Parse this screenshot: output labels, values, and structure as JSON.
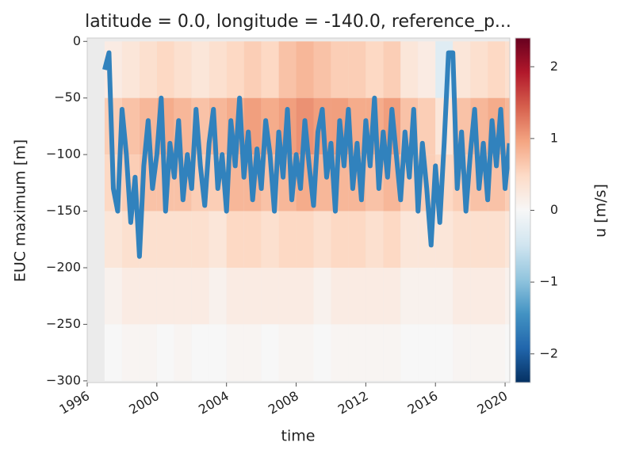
{
  "chart_data": {
    "type": "heatmap",
    "title": "latitude = 0.0, longitude = -140.0, reference_p...",
    "xlabel": "time",
    "ylabel": "EUC maximum [m]",
    "colorbar_label": "u [m/s]",
    "colormap": "RdBu_r",
    "xlim": [
      1996,
      2020.27
    ],
    "ylim": [
      -301.5,
      3
    ],
    "xticks": [
      1996,
      2000,
      2004,
      2008,
      2012,
      2016,
      2020
    ],
    "yticks": [
      {
        "value": -300,
        "label": "−300"
      },
      {
        "value": -250,
        "label": "−250"
      },
      {
        "value": -200,
        "label": "−200"
      },
      {
        "value": -150,
        "label": "−150"
      },
      {
        "value": -100,
        "label": "−100"
      },
      {
        "value": -50,
        "label": "−50"
      },
      0
    ],
    "clim": [
      -2.4,
      2.4
    ],
    "cticks": [
      {
        "value": -2,
        "label": "−2"
      },
      {
        "value": -1,
        "label": "−1"
      },
      0,
      1,
      2
    ],
    "heatmap": {
      "x_bins": [
        1997,
        1998,
        1999,
        2000,
        2001,
        2002,
        2003,
        2004,
        2005,
        2006,
        2007,
        2008,
        2009,
        2010,
        2011,
        2012,
        2013,
        2014,
        2015,
        2016,
        2017,
        2018,
        2019,
        2020,
        2020.27
      ],
      "y_bins": [
        0,
        -50,
        -100,
        -150,
        -200,
        -250,
        -300
      ],
      "values": [
        [
          0.2,
          0.6,
          0.5,
          0.3,
          0.1,
          0.0
        ],
        [
          0.3,
          0.7,
          0.6,
          0.4,
          0.2,
          0.05
        ],
        [
          0.4,
          0.8,
          0.7,
          0.4,
          0.2,
          0.05
        ],
        [
          0.5,
          0.9,
          0.7,
          0.4,
          0.2,
          0.0
        ],
        [
          0.4,
          0.8,
          0.7,
          0.4,
          0.2,
          0.05
        ],
        [
          0.3,
          0.7,
          0.6,
          0.4,
          0.2,
          0.0
        ],
        [
          0.4,
          0.8,
          0.6,
          0.3,
          0.1,
          0.0
        ],
        [
          0.5,
          0.9,
          0.8,
          0.5,
          0.2,
          0.05
        ],
        [
          0.6,
          1.0,
          0.8,
          0.5,
          0.2,
          0.05
        ],
        [
          0.5,
          0.9,
          0.7,
          0.4,
          0.2,
          0.0
        ],
        [
          0.7,
          1.0,
          0.8,
          0.5,
          0.2,
          0.05
        ],
        [
          0.8,
          1.1,
          0.9,
          0.5,
          0.2,
          0.05
        ],
        [
          0.7,
          1.0,
          0.8,
          0.4,
          0.1,
          0.0
        ],
        [
          0.6,
          1.0,
          0.8,
          0.5,
          0.2,
          0.05
        ],
        [
          0.6,
          0.9,
          0.8,
          0.5,
          0.2,
          0.05
        ],
        [
          0.5,
          0.9,
          0.7,
          0.4,
          0.2,
          0.05
        ],
        [
          0.6,
          1.0,
          0.8,
          0.5,
          0.2,
          0.05
        ],
        [
          0.3,
          0.7,
          0.6,
          0.3,
          0.1,
          0.0
        ],
        [
          0.2,
          0.6,
          0.6,
          0.3,
          0.1,
          0.0
        ],
        [
          -0.3,
          0.3,
          0.5,
          0.3,
          0.1,
          0.0
        ],
        [
          0.3,
          0.7,
          0.6,
          0.4,
          0.2,
          0.05
        ],
        [
          0.4,
          0.8,
          0.7,
          0.4,
          0.2,
          0.05
        ],
        [
          0.5,
          0.9,
          0.7,
          0.4,
          0.2,
          0.05
        ],
        [
          0.4,
          0.8,
          0.6,
          0.3,
          0.1,
          0.0
        ]
      ]
    },
    "series": [
      {
        "color": "#3182bd",
        "x": [
          1997.0,
          1997.25,
          1997.5,
          1997.75,
          1998.0,
          1998.25,
          1998.5,
          1998.75,
          1999.0,
          1999.25,
          1999.5,
          1999.75,
          2000.0,
          2000.25,
          2000.5,
          2000.75,
          2001.0,
          2001.25,
          2001.5,
          2001.75,
          2002.0,
          2002.25,
          2002.5,
          2002.75,
          2003.0,
          2003.25,
          2003.5,
          2003.75,
          2004.0,
          2004.25,
          2004.5,
          2004.75,
          2005.0,
          2005.25,
          2005.5,
          2005.75,
          2006.0,
          2006.25,
          2006.5,
          2006.75,
          2007.0,
          2007.25,
          2007.5,
          2007.75,
          2008.0,
          2008.25,
          2008.5,
          2008.75,
          2009.0,
          2009.25,
          2009.5,
          2009.75,
          2010.0,
          2010.25,
          2010.5,
          2010.75,
          2011.0,
          2011.25,
          2011.5,
          2011.75,
          2012.0,
          2012.25,
          2012.5,
          2012.75,
          2013.0,
          2013.25,
          2013.5,
          2013.75,
          2014.0,
          2014.25,
          2014.5,
          2014.75,
          2015.0,
          2015.25,
          2015.5,
          2015.75,
          2016.0,
          2016.25,
          2016.5,
          2016.75,
          2017.0,
          2017.25,
          2017.5,
          2017.75,
          2018.0,
          2018.25,
          2018.5,
          2018.75,
          2019.0,
          2019.25,
          2019.5,
          2019.75,
          2020.0,
          2020.25
        ],
        "values": [
          -25,
          -10,
          -130,
          -150,
          -60,
          -100,
          -160,
          -120,
          -190,
          -110,
          -70,
          -130,
          -100,
          -50,
          -150,
          -90,
          -120,
          -70,
          -140,
          -100,
          -130,
          -60,
          -110,
          -145,
          -90,
          -60,
          -130,
          -100,
          -150,
          -70,
          -110,
          -50,
          -120,
          -80,
          -140,
          -95,
          -130,
          -70,
          -100,
          -150,
          -80,
          -120,
          -60,
          -140,
          -100,
          -130,
          -70,
          -110,
          -145,
          -80,
          -60,
          -120,
          -90,
          -150,
          -70,
          -110,
          -60,
          -130,
          -90,
          -140,
          -70,
          -110,
          -50,
          -130,
          -80,
          -120,
          -60,
          -100,
          -140,
          -80,
          -120,
          -60,
          -150,
          -90,
          -130,
          -180,
          -110,
          -160,
          -90,
          -10,
          -10,
          -130,
          -80,
          -150,
          -100,
          -60,
          -130,
          -90,
          -140,
          -70,
          -110,
          -60,
          -130,
          -90
        ]
      }
    ]
  }
}
